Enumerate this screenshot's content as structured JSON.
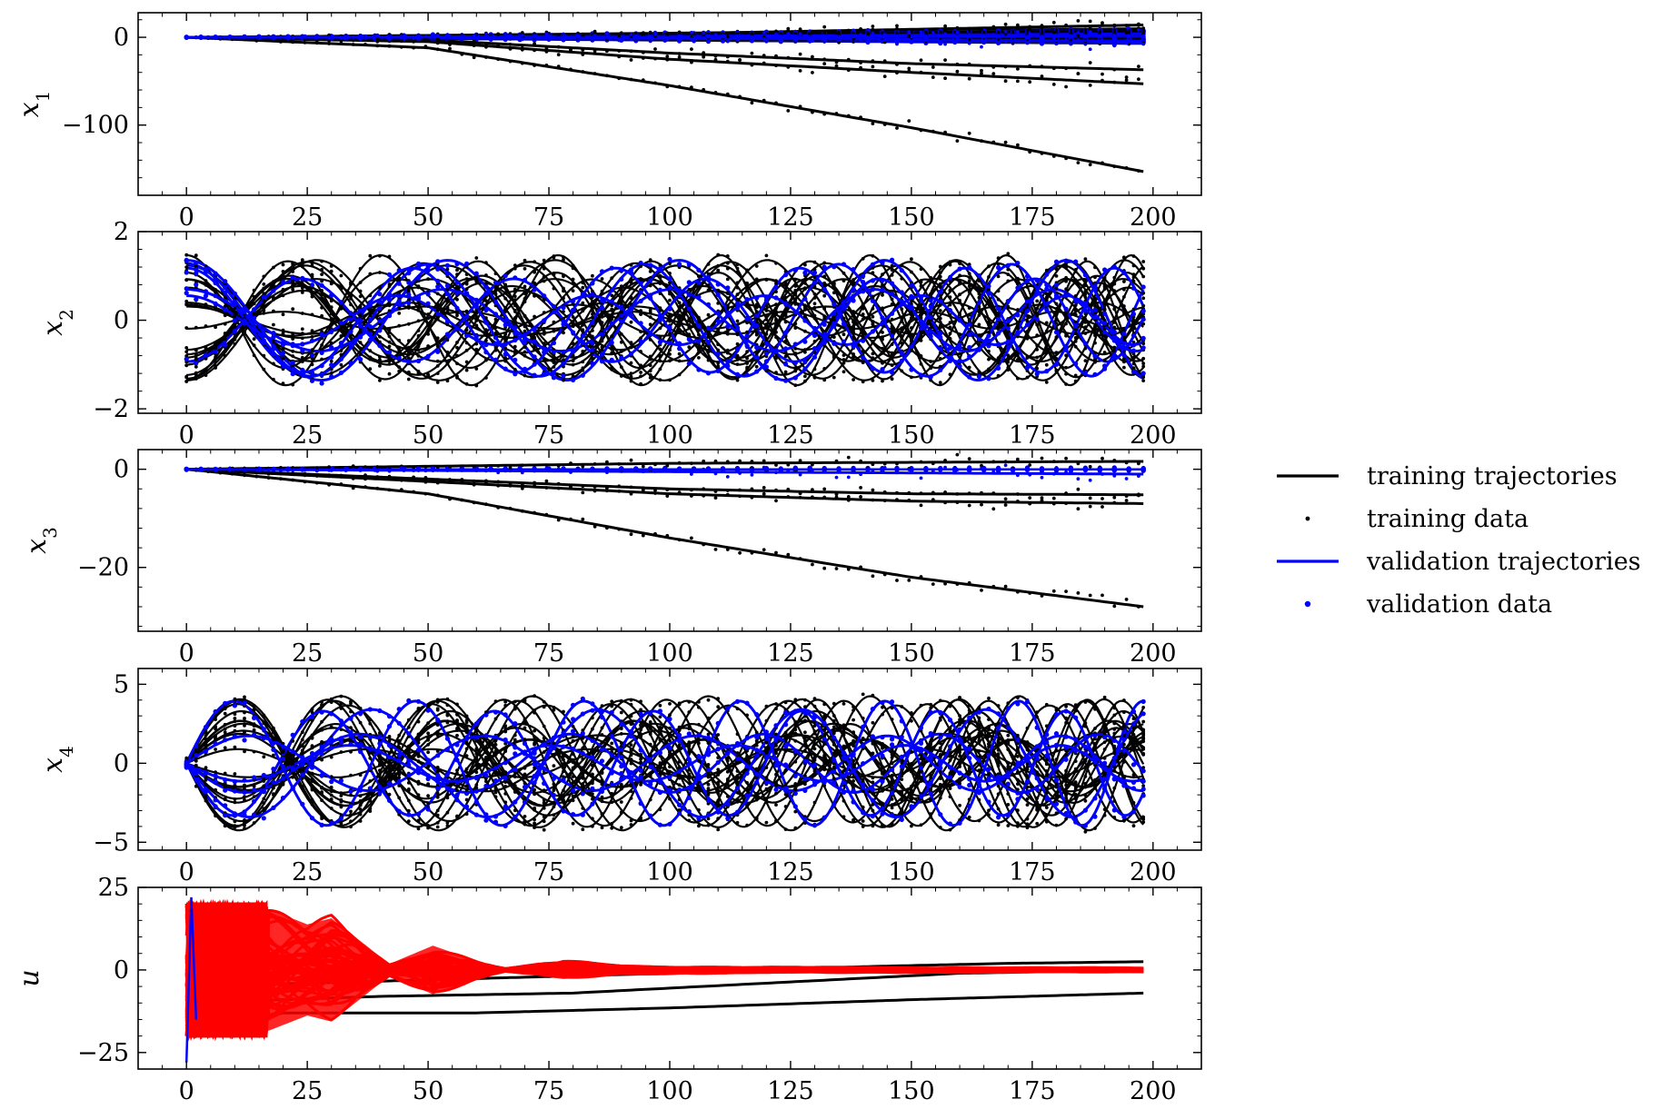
{
  "legend": {
    "entries": [
      {
        "label": "training trajectories",
        "kind": "line",
        "color": "#000000"
      },
      {
        "label": "training data",
        "kind": "marker",
        "color": "#000000"
      },
      {
        "label": "validation trajectories",
        "kind": "line",
        "color": "#0000ff"
      },
      {
        "label": "validation data",
        "kind": "marker",
        "color": "#0000ff"
      }
    ]
  },
  "colors": {
    "training": "#000000",
    "validation": "#0000ff",
    "control": "#ff0000"
  },
  "chart_data": [
    {
      "type": "line",
      "ylabel": "x",
      "ylabel_sub": "1",
      "xlim": [
        -10,
        210
      ],
      "ylim": [
        -180,
        28
      ],
      "xticks": [
        0,
        25,
        50,
        75,
        100,
        125,
        150,
        175,
        200
      ],
      "yticks": [
        {
          "value": 0,
          "label": "0"
        },
        {
          "value": -100,
          "label": "−100"
        }
      ],
      "series": [
        {
          "group": "training",
          "values": [
            [
              0,
              0
            ],
            [
              50,
              -12
            ],
            [
              100,
              -55
            ],
            [
              150,
              -103
            ],
            [
              198,
              -153
            ]
          ]
        },
        {
          "group": "training",
          "values": [
            [
              0,
              0
            ],
            [
              50,
              -5
            ],
            [
              100,
              -25
            ],
            [
              150,
              -40
            ],
            [
              198,
              -53
            ]
          ]
        },
        {
          "group": "training",
          "values": [
            [
              0,
              0
            ],
            [
              50,
              -3
            ],
            [
              100,
              -18
            ],
            [
              150,
              -30
            ],
            [
              198,
              -37
            ]
          ]
        },
        {
          "group": "training",
          "values": [
            [
              0,
              0
            ],
            [
              100,
              4
            ],
            [
              198,
              14
            ]
          ]
        },
        {
          "group": "training",
          "values": [
            [
              0,
              0
            ],
            [
              100,
              2
            ],
            [
              198,
              8
            ]
          ]
        },
        {
          "group": "validation",
          "values": [
            [
              0,
              0
            ],
            [
              100,
              0
            ],
            [
              198,
              -5
            ]
          ]
        },
        {
          "group": "validation",
          "values": [
            [
              0,
              0
            ],
            [
              100,
              1
            ],
            [
              198,
              4
            ]
          ]
        }
      ]
    },
    {
      "type": "line",
      "ylabel": "x",
      "ylabel_sub": "2",
      "xlim": [
        -10,
        210
      ],
      "ylim": [
        -2.1,
        2.0
      ],
      "xticks": [
        0,
        25,
        50,
        75,
        100,
        125,
        150,
        175,
        200
      ],
      "yticks": [
        {
          "value": 2,
          "label": "2"
        },
        {
          "value": 0,
          "label": "0"
        },
        {
          "value": -2,
          "label": "−2"
        }
      ],
      "oscillation": {
        "amplitude_max": 1.5,
        "period_start": 48,
        "period_end": 28
      },
      "series": [
        {
          "group": "training",
          "values": [
            [
              0,
              1.4
            ],
            [
              12,
              0
            ],
            [
              24,
              -1.4
            ],
            [
              36,
              0
            ],
            [
              48,
              1.4
            ]
          ]
        },
        {
          "group": "validation",
          "values": [
            [
              0,
              -1.2
            ],
            [
              12,
              0
            ],
            [
              24,
              1.2
            ],
            [
              36,
              0
            ],
            [
              48,
              -1.2
            ]
          ]
        }
      ]
    },
    {
      "type": "line",
      "ylabel": "x",
      "ylabel_sub": "3",
      "xlim": [
        -10,
        210
      ],
      "ylim": [
        -33,
        4
      ],
      "xticks": [
        0,
        25,
        50,
        75,
        100,
        125,
        150,
        175,
        200
      ],
      "yticks": [
        {
          "value": 0,
          "label": "0"
        },
        {
          "value": -20,
          "label": "−20"
        }
      ],
      "series": [
        {
          "group": "training",
          "values": [
            [
              0,
              0
            ],
            [
              50,
              -5
            ],
            [
              100,
              -14
            ],
            [
              150,
              -22
            ],
            [
              198,
              -28
            ]
          ]
        },
        {
          "group": "training",
          "values": [
            [
              0,
              0
            ],
            [
              50,
              -2.5
            ],
            [
              100,
              -5
            ],
            [
              150,
              -6.5
            ],
            [
              198,
              -7
            ]
          ]
        },
        {
          "group": "training",
          "values": [
            [
              0,
              0
            ],
            [
              50,
              -2
            ],
            [
              100,
              -4
            ],
            [
              150,
              -5
            ],
            [
              198,
              -5.2
            ]
          ]
        },
        {
          "group": "training",
          "values": [
            [
              0,
              0
            ],
            [
              100,
              1.2
            ],
            [
              198,
              1.6
            ]
          ]
        },
        {
          "group": "validation",
          "values": [
            [
              0,
              0
            ],
            [
              100,
              -0.5
            ],
            [
              198,
              -1
            ]
          ]
        }
      ]
    },
    {
      "type": "line",
      "ylabel": "x",
      "ylabel_sub": "4",
      "xlim": [
        -10,
        210
      ],
      "ylim": [
        -5.5,
        6
      ],
      "xticks": [
        0,
        25,
        50,
        75,
        100,
        125,
        150,
        175,
        200
      ],
      "yticks": [
        {
          "value": 5,
          "label": "5"
        },
        {
          "value": 0,
          "label": "0"
        },
        {
          "value": -5,
          "label": "−5"
        }
      ],
      "oscillation": {
        "amplitude_max": 4.3,
        "period_start": 45,
        "period_end": 28
      },
      "series": [
        {
          "group": "training",
          "values": [
            [
              0,
              0
            ],
            [
              11,
              4.3
            ],
            [
              22,
              0
            ],
            [
              33,
              -4.3
            ],
            [
              44,
              0
            ]
          ]
        },
        {
          "group": "validation",
          "values": [
            [
              0,
              0
            ],
            [
              11,
              -3.8
            ],
            [
              22,
              0
            ],
            [
              33,
              3.8
            ],
            [
              44,
              0
            ]
          ]
        }
      ]
    },
    {
      "type": "line",
      "ylabel": "u",
      "ylabel_sub": "",
      "xlim": [
        -10,
        210
      ],
      "ylim": [
        -30,
        25
      ],
      "xticks": [
        0,
        25,
        50,
        75,
        100,
        125,
        150,
        175,
        200
      ],
      "yticks": [
        {
          "value": 25,
          "label": "25"
        },
        {
          "value": 0,
          "label": "0"
        },
        {
          "value": -25,
          "label": "−25"
        }
      ],
      "control_envelope": [
        [
          0,
          20
        ],
        [
          17,
          20
        ],
        [
          25,
          15
        ],
        [
          30,
          17
        ],
        [
          38,
          7
        ],
        [
          42,
          2
        ],
        [
          51,
          8
        ],
        [
          60,
          3
        ],
        [
          66,
          0.5
        ],
        [
          78,
          3
        ],
        [
          90,
          1.5
        ],
        [
          110,
          1
        ],
        [
          198,
          0.7
        ]
      ],
      "series": [
        {
          "group": "training",
          "values": [
            [
              0,
              -20
            ],
            [
              20,
              -13
            ],
            [
              60,
              -13
            ],
            [
              100,
              -11.5
            ],
            [
              150,
              -9
            ],
            [
              198,
              -7
            ]
          ]
        },
        {
          "group": "training",
          "values": [
            [
              0,
              -10
            ],
            [
              40,
              -8
            ],
            [
              80,
              -7
            ],
            [
              120,
              -4
            ],
            [
              160,
              -1
            ],
            [
              198,
              0
            ]
          ]
        },
        {
          "group": "training",
          "values": [
            [
              0,
              -5
            ],
            [
              50,
              -3
            ],
            [
              100,
              -1
            ],
            [
              140,
              1
            ],
            [
              170,
              2
            ],
            [
              198,
              2.5
            ]
          ]
        }
      ]
    }
  ]
}
